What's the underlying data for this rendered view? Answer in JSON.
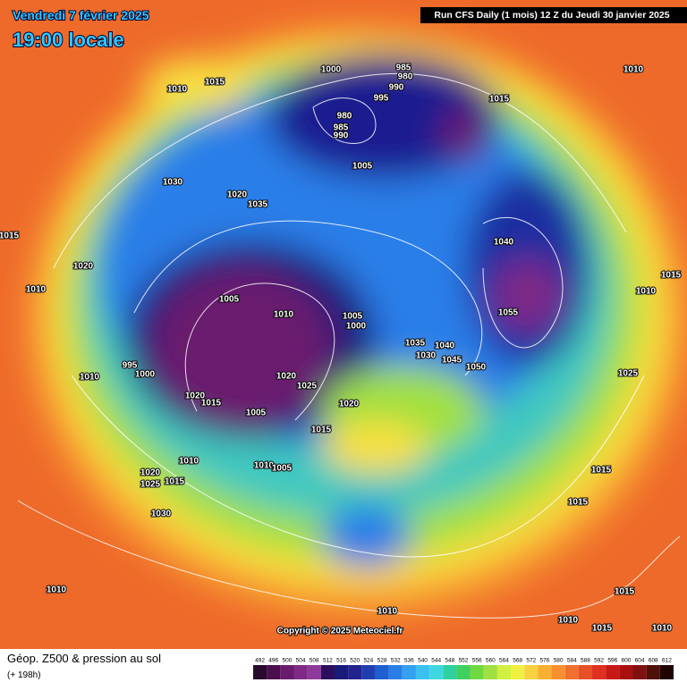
{
  "header": {
    "date": "Vendredi 7 février 2025",
    "time": "19:00 locale",
    "run": "Run CFS Daily (1 mois) 12 Z du Jeudi 30 janvier 2025"
  },
  "isobar_labels": [
    1010,
    1015,
    1000,
    985,
    980,
    990,
    995,
    980,
    985,
    990,
    1010,
    1015,
    1005,
    1030,
    1020,
    1035,
    1015,
    1020,
    1010,
    1040,
    1055,
    1015,
    1010,
    1005,
    1010,
    1005,
    1000,
    1035,
    1040,
    1030,
    1045,
    1050,
    1025,
    995,
    1000,
    1010,
    1020,
    1025,
    1020,
    1015,
    1020,
    1005,
    1015,
    1010,
    1010,
    1005,
    1015,
    1020,
    1025,
    1015,
    1015,
    1030,
    1010,
    1015,
    1010,
    1010,
    1015,
    1010
  ],
  "copyright": "Copyright © 2025 Meteociel.fr",
  "footer": {
    "title": "Géop. Z500 & pression au sol",
    "lead": "(+ 198h)"
  },
  "scale": {
    "ticks": [
      492,
      496,
      500,
      504,
      508,
      512,
      516,
      520,
      524,
      528,
      532,
      536,
      540,
      544,
      548,
      552,
      556,
      560,
      564,
      568,
      572,
      576,
      580,
      584,
      588,
      592,
      596,
      600,
      604,
      608,
      612
    ],
    "colors": [
      "#2a0a2e",
      "#4b0f4e",
      "#6a1b6e",
      "#7f2a86",
      "#8e3a9a",
      "#2b0f5e",
      "#1a1a7a",
      "#23238f",
      "#1f3fb0",
      "#1f5fd0",
      "#2a7ee8",
      "#33a0f0",
      "#3cc0f0",
      "#40d8e0",
      "#30d0a0",
      "#40d060",
      "#70d840",
      "#a0e040",
      "#d0f040",
      "#f0f040",
      "#f8d040",
      "#f8b030",
      "#f89030",
      "#f07030",
      "#e85028",
      "#e03020",
      "#c81818",
      "#a81010",
      "#801010",
      "#501008",
      "#200404"
    ]
  }
}
